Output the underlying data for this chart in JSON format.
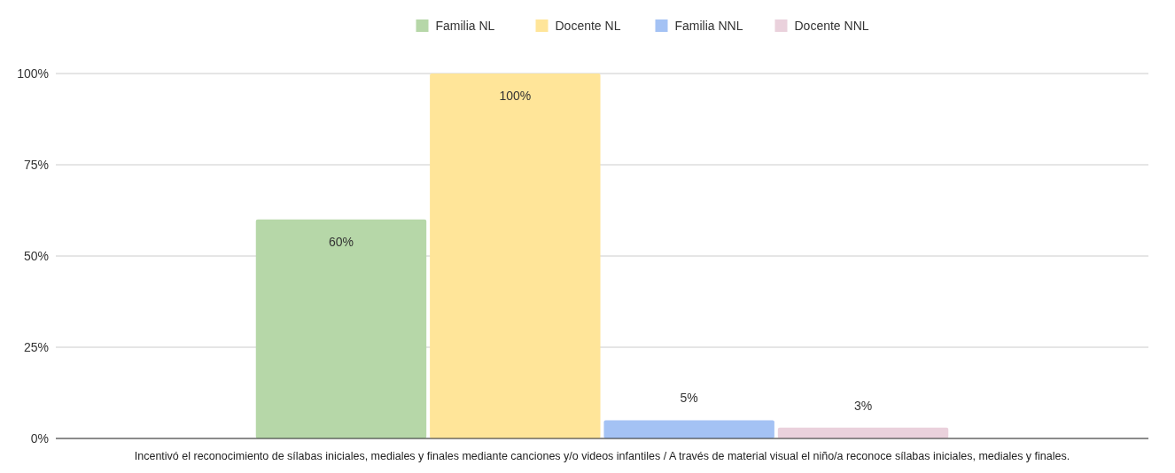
{
  "chart_data": {
    "type": "bar",
    "categories": [
      "Incentivó el reconocimiento de sílabas iniciales, mediales y finales mediante canciones y/o videos infantiles / A través de material visual el niño/a reconoce sílabas iniciales, mediales y finales."
    ],
    "series": [
      {
        "name": "Familia NL",
        "color": "#b6d7a8",
        "values": [
          60
        ],
        "value_labels": [
          "60%"
        ]
      },
      {
        "name": "Docente NL",
        "color": "#ffe599",
        "values": [
          100
        ],
        "value_labels": [
          "100%"
        ]
      },
      {
        "name": "Familia NNL",
        "color": "#a4c2f4",
        "values": [
          5
        ],
        "value_labels": [
          "5%"
        ]
      },
      {
        "name": "Docente NNL",
        "color": "#ead1dc",
        "values": [
          3
        ],
        "value_labels": [
          "3%"
        ]
      }
    ],
    "ylim": [
      0,
      100
    ],
    "yticks": [
      {
        "value": 0,
        "label": "0%"
      },
      {
        "value": 25,
        "label": "25%"
      },
      {
        "value": 50,
        "label": "50%"
      },
      {
        "value": 75,
        "label": "75%"
      },
      {
        "value": 100,
        "label": "100%"
      }
    ],
    "grid": "y",
    "legend": "top"
  }
}
